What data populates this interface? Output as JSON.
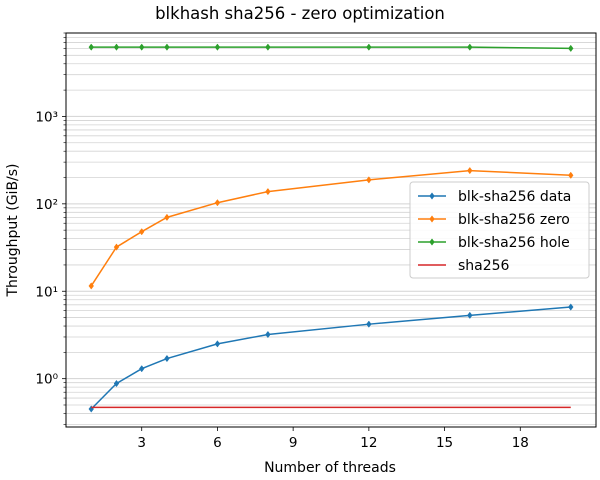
{
  "chart_data": {
    "type": "line",
    "title": "blkhash sha256 - zero optimization",
    "xlabel": "Number of threads",
    "ylabel": "Throughput (GiB/s)",
    "xlim": [
      0,
      21
    ],
    "ylim": [
      0.28,
      9000
    ],
    "yscale": "log",
    "grid": "y-major-and-minor",
    "legend_position": "right",
    "xticks": [
      3,
      6,
      9,
      12,
      15,
      18
    ],
    "yticks": [
      {
        "value": 1,
        "label": "10⁰"
      },
      {
        "value": 10,
        "label": "10¹"
      },
      {
        "value": 100,
        "label": "10²"
      },
      {
        "value": 1000,
        "label": "10³"
      }
    ],
    "series": [
      {
        "name": "blk-sha256 data",
        "color": "#1f77b4",
        "marker": "diamond",
        "x": [
          1,
          2,
          3,
          4,
          6,
          8,
          12,
          16,
          20
        ],
        "y": [
          0.45,
          0.88,
          1.3,
          1.7,
          2.5,
          3.2,
          4.2,
          5.3,
          6.6
        ]
      },
      {
        "name": "blk-sha256 zero",
        "color": "#ff7f0e",
        "marker": "diamond",
        "x": [
          1,
          2,
          3,
          4,
          6,
          8,
          12,
          16,
          20
        ],
        "y": [
          11.5,
          32,
          48,
          70,
          103,
          138,
          188,
          240,
          212
        ]
      },
      {
        "name": "blk-sha256 hole",
        "color": "#2ca02c",
        "marker": "diamond",
        "x": [
          1,
          2,
          3,
          4,
          6,
          8,
          12,
          16,
          20
        ],
        "y": [
          6200,
          6200,
          6200,
          6200,
          6200,
          6200,
          6200,
          6200,
          6000
        ]
      },
      {
        "name": "sha256",
        "color": "#d62728",
        "marker": "none",
        "x": [
          1,
          20
        ],
        "y": [
          0.47,
          0.47
        ]
      }
    ]
  }
}
